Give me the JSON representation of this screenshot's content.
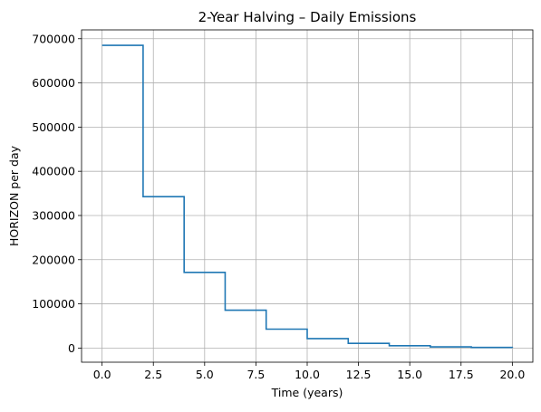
{
  "chart_data": {
    "type": "line",
    "step": "post",
    "title": "2-Year Halving – Daily Emissions",
    "xlabel": "Time (years)",
    "ylabel": "HORIZON per day",
    "xlim": [
      -1.0,
      21.0
    ],
    "ylim": [
      -32000,
      720000
    ],
    "x_ticks": [
      0.0,
      2.5,
      5.0,
      7.5,
      10.0,
      12.5,
      15.0,
      17.5,
      20.0
    ],
    "x_tick_labels": [
      "0.0",
      "2.5",
      "5.0",
      "7.5",
      "10.0",
      "12.5",
      "15.0",
      "17.5",
      "20.0"
    ],
    "y_ticks": [
      0,
      100000,
      200000,
      300000,
      400000,
      500000,
      600000,
      700000
    ],
    "y_tick_labels": [
      "0",
      "100000",
      "200000",
      "300000",
      "400000",
      "500000",
      "600000",
      "700000"
    ],
    "grid": true,
    "series": [
      {
        "color": "#1f77b4",
        "x": [
          0,
          2,
          4,
          6,
          8,
          10,
          12,
          14,
          16,
          18,
          20
        ],
        "y": [
          685000,
          342500,
          171250,
          85625,
          42812,
          21406,
          10703,
          5352,
          2676,
          1338,
          669
        ]
      }
    ]
  }
}
